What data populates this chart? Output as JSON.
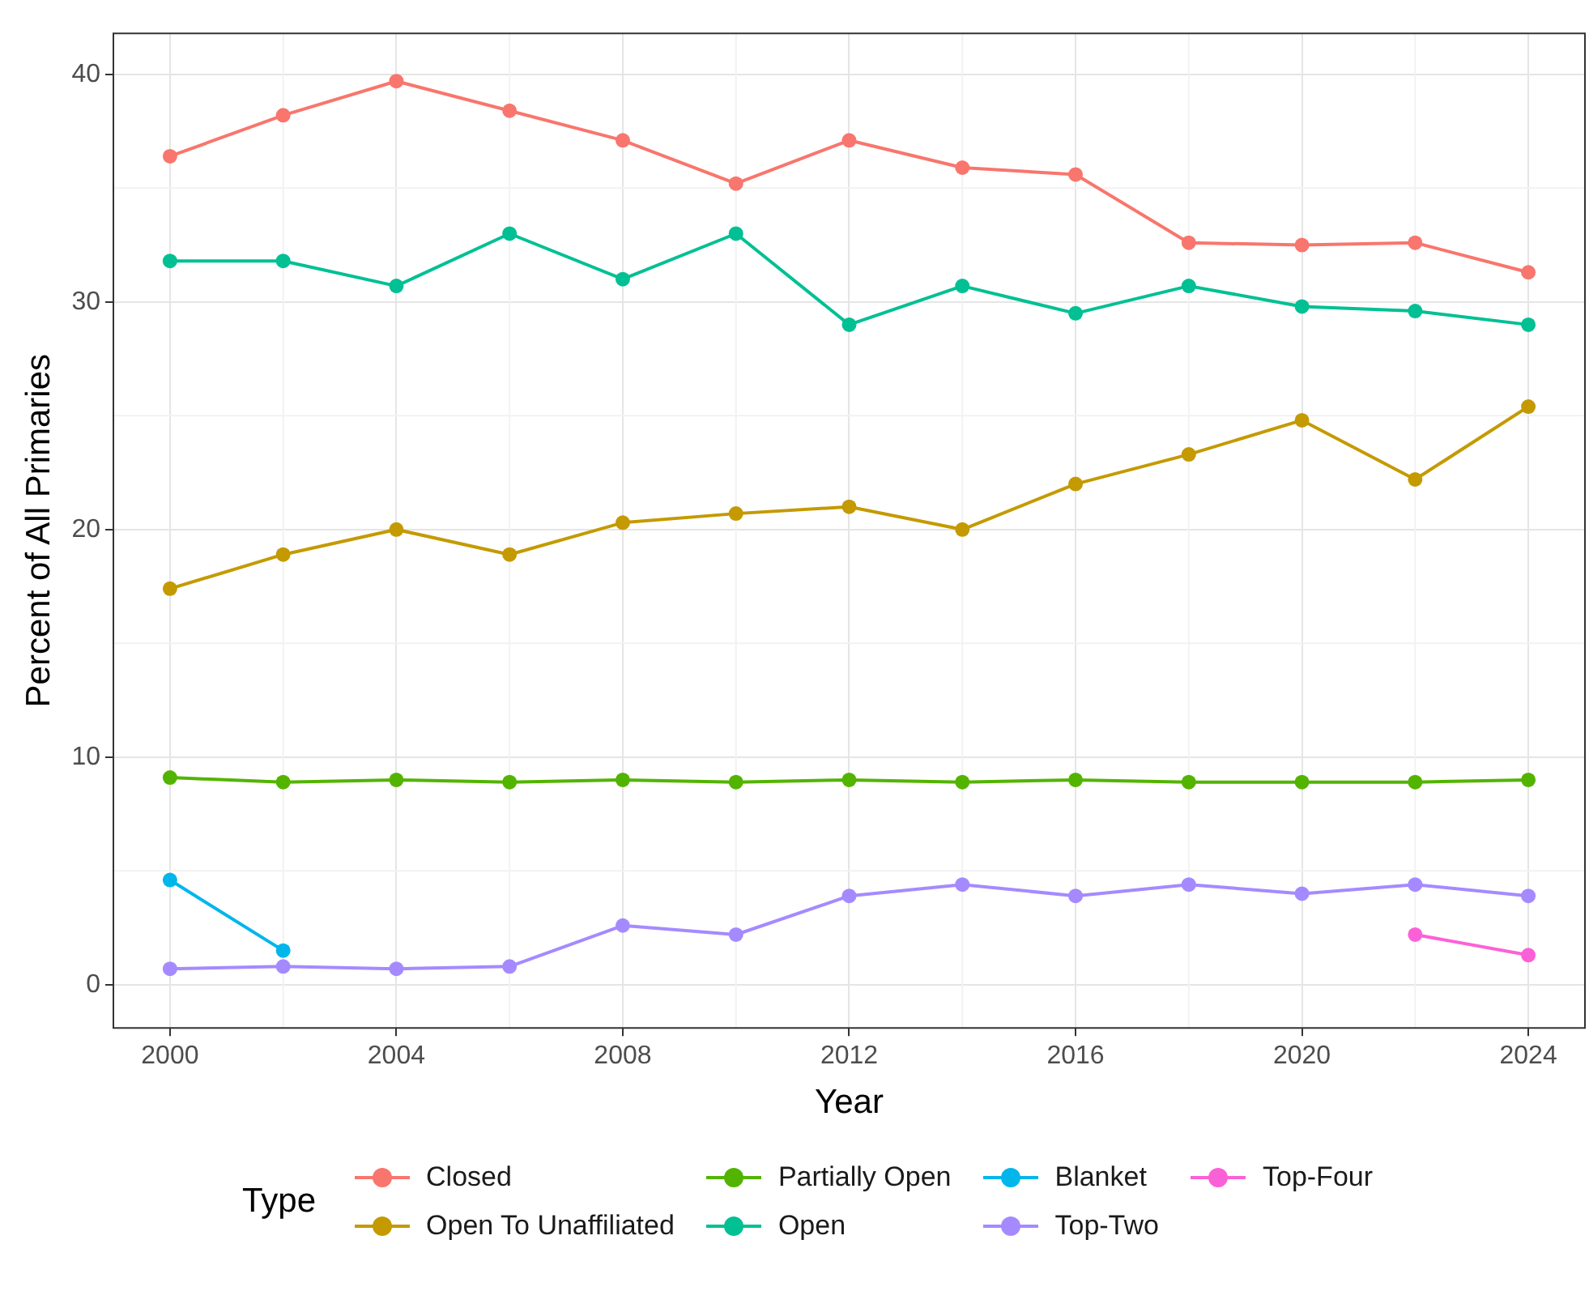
{
  "chart_data": {
    "type": "line",
    "xlabel": "Year",
    "ylabel": "Percent of All Primaries",
    "legend_title": "Type",
    "x": [
      2000,
      2002,
      2004,
      2006,
      2008,
      2010,
      2012,
      2014,
      2016,
      2018,
      2020,
      2022,
      2024
    ],
    "xlim": [
      1999,
      2025
    ],
    "xticks": [
      2000,
      2004,
      2008,
      2012,
      2016,
      2020,
      2024
    ],
    "ylim": [
      -1.9,
      41.8
    ],
    "yticks": [
      0,
      10,
      20,
      30,
      40
    ],
    "grid": true,
    "legend": "bottom",
    "marker": "circle",
    "line_style": "solid",
    "series": [
      {
        "name": "Closed",
        "color": "#f8766d",
        "values": [
          36.4,
          38.2,
          39.7,
          38.4,
          37.1,
          35.2,
          37.1,
          35.9,
          35.6,
          32.6,
          32.5,
          32.6,
          31.3
        ]
      },
      {
        "name": "Open To Unaffiliated",
        "color": "#c49a00",
        "values": [
          17.4,
          18.9,
          20.0,
          18.9,
          20.3,
          20.7,
          21.0,
          20.0,
          22.0,
          23.3,
          24.8,
          22.2,
          25.4
        ]
      },
      {
        "name": "Partially Open",
        "color": "#53b400",
        "values": [
          9.1,
          8.9,
          9.0,
          8.9,
          9.0,
          8.9,
          9.0,
          8.9,
          9.0,
          8.9,
          8.9,
          8.9,
          9.0
        ]
      },
      {
        "name": "Open",
        "color": "#00c094",
        "values": [
          31.8,
          31.8,
          30.7,
          33.0,
          31.0,
          33.0,
          29.0,
          30.7,
          29.5,
          30.7,
          29.8,
          29.6,
          29.0
        ]
      },
      {
        "name": "Blanket",
        "color": "#00b6eb",
        "values": [
          4.6,
          1.5,
          null,
          null,
          null,
          null,
          null,
          null,
          null,
          null,
          null,
          null,
          null
        ]
      },
      {
        "name": "Top-Two",
        "color": "#a58aff",
        "values": [
          0.7,
          0.8,
          0.7,
          0.8,
          2.6,
          2.2,
          3.9,
          4.4,
          3.9,
          4.4,
          4.0,
          4.4,
          3.9
        ]
      },
      {
        "name": "Top-Four",
        "color": "#fb61d7",
        "values": [
          null,
          null,
          null,
          null,
          null,
          null,
          null,
          null,
          null,
          null,
          null,
          2.2,
          1.3
        ]
      }
    ]
  }
}
